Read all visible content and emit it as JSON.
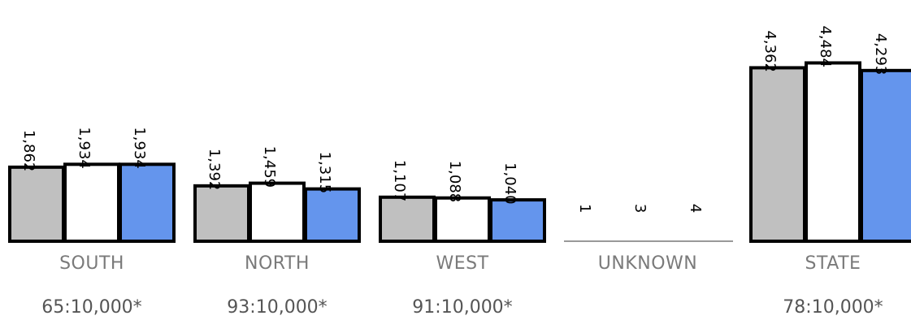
{
  "chart_data": {
    "type": "bar",
    "categories": [
      "SOUTH",
      "NORTH",
      "WEST",
      "UNKNOWN",
      "STATE"
    ],
    "category_rates": [
      "65:10,000*",
      "93:10,000*",
      "91:10,000*",
      "",
      "78:10,000*"
    ],
    "series": [
      {
        "values": [
          1862,
          1392,
          1107,
          1,
          4362
        ],
        "labels": [
          "1,862",
          "1,392",
          "1,107",
          "1",
          "4,362"
        ],
        "color": "#c0c0c0"
      },
      {
        "values": [
          1934,
          1459,
          1088,
          3,
          4484
        ],
        "labels": [
          "1,934",
          "1,459",
          "1,088",
          "3",
          "4,484"
        ],
        "color": "#ffffff"
      },
      {
        "values": [
          1934,
          1315,
          1040,
          4,
          4293
        ],
        "labels": [
          "1,934",
          "1,315",
          "1,040",
          "4",
          "4,293"
        ],
        "color": "#6495ed"
      }
    ],
    "title": "",
    "xlabel": "",
    "ylabel": "",
    "ylim": [
      0,
      4800
    ],
    "grid": false,
    "legend": "none",
    "bar_outline_color": "#000000"
  }
}
